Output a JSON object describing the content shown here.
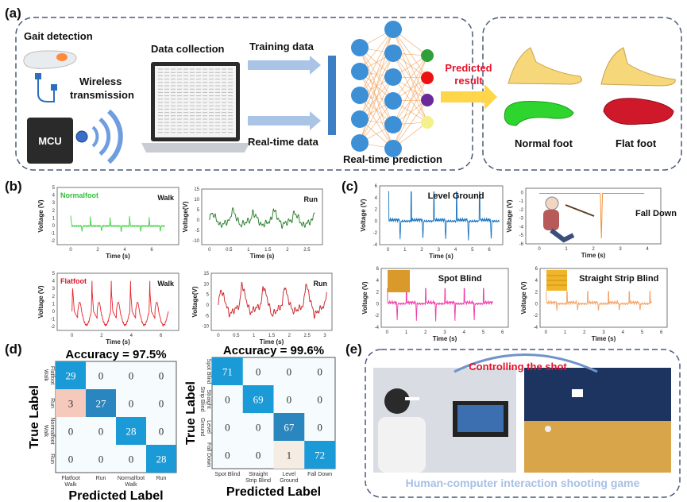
{
  "panel_labels": {
    "a": "(a)",
    "b": "(b)",
    "c": "(c)",
    "d": "(d)",
    "e": "(e)"
  },
  "panel_a": {
    "gait_detection": "Gait detection",
    "mcu": "MCU",
    "wireless_line1": "Wireless",
    "wireless_line2": "transmission",
    "data_collection": "Data collection",
    "training_data": "Training data",
    "realtime_data": "Real-time data",
    "realtime_prediction": "Real-time prediction",
    "predicted_line1": "Predicted",
    "predicted_line2": "result",
    "normal_foot": "Normal foot",
    "flat_foot": "Flat foot",
    "colors": {
      "accent_red": "#e8102a",
      "arrow": "#a9c4e4",
      "node": "#3d8fd6",
      "normal": "#2fd52f",
      "flat": "#d0182b"
    }
  },
  "panel_e": {
    "controlling": "Controlling the shot",
    "caption": "Human-computer interaction shooting game"
  },
  "chart_data": [
    {
      "id": "b1",
      "type": "line",
      "label": "Normalfoot",
      "label_color": "#2fbf3a",
      "title": "Walk",
      "xlabel": "Time (s)",
      "ylabel": "Voltage (V)",
      "xlim": [
        -1,
        8
      ],
      "ylim": [
        -2.5,
        5
      ],
      "xticks": [
        0,
        2,
        4,
        6
      ],
      "yticks": [
        -2,
        -1,
        0,
        1,
        2,
        3,
        4,
        5
      ],
      "color": "#3fd23f",
      "period": 1.45,
      "duration": 7,
      "peak": 1.3,
      "trough": -0.8,
      "shape": "walk-normal"
    },
    {
      "id": "b2",
      "type": "line",
      "title": "Run",
      "xlabel": "Time (s)",
      "ylabel": "Voltage(V)",
      "xlim": [
        -0.2,
        2.9
      ],
      "ylim": [
        -12,
        15
      ],
      "xticks": [
        0.0,
        0.5,
        1.0,
        1.5,
        2.0,
        2.5
      ],
      "yticks": [
        -10,
        -5,
        0,
        5,
        10,
        15
      ],
      "color": "#1f7a22",
      "period": 0.53,
      "duration": 2.7,
      "peak": 5.5,
      "trough": -5,
      "shape": "run"
    },
    {
      "id": "b3",
      "type": "line",
      "label": "Flatfoot",
      "label_color": "#d0182b",
      "title": "Walk",
      "xlabel": "Time (s)",
      "ylabel": "Voltage (V)",
      "xlim": [
        -1,
        7.2
      ],
      "ylim": [
        -2.5,
        5
      ],
      "xticks": [
        0,
        2,
        4,
        6
      ],
      "yticks": [
        -2,
        -1,
        0,
        1,
        2,
        3,
        4,
        5
      ],
      "color": "#e8232b",
      "period": 1.3,
      "duration": 6.5,
      "peak": 4,
      "trough": -1.8,
      "shape": "walk-flat"
    },
    {
      "id": "b4",
      "type": "line",
      "title": "Run",
      "xlabel": "Time (s)",
      "ylabel": "Voltage(V)",
      "xlim": [
        -0.2,
        3.2
      ],
      "ylim": [
        -12,
        15
      ],
      "xticks": [
        0.0,
        0.5,
        1.0,
        1.5,
        2.0,
        2.5,
        3.0
      ],
      "yticks": [
        -10,
        -5,
        0,
        5,
        10,
        15
      ],
      "color": "#c81e23",
      "period": 0.6,
      "duration": 3.05,
      "peak": 11,
      "trough": -8,
      "shape": "run"
    },
    {
      "id": "c1",
      "type": "line",
      "title": "Level Ground",
      "xlabel": "Time (s)",
      "ylabel": "Voltage (V)",
      "xlim": [
        -0.5,
        6.8
      ],
      "ylim": [
        -4,
        6
      ],
      "xticks": [
        0,
        1,
        2,
        3,
        4,
        5,
        6
      ],
      "yticks": [
        -4,
        -2,
        0,
        2,
        4,
        6
      ],
      "color": "#1a74c0",
      "period": 1.35,
      "duration": 6.6,
      "peak": 5,
      "trough": -3.3,
      "shape": "step"
    },
    {
      "id": "c2",
      "type": "line",
      "title": "Fall Down",
      "xlabel": "Time (s)",
      "ylabel": "Voltage (V)",
      "xlim": [
        -0.5,
        4.5
      ],
      "ylim": [
        -6,
        0.5
      ],
      "xticks": [
        0,
        1,
        2,
        3,
        4
      ],
      "yticks": [
        0,
        -1,
        -2,
        -3,
        -4,
        -5,
        -6
      ],
      "color": "#f08a2c",
      "duration": 3.9,
      "spike_at": 2.3,
      "trough": -5.5,
      "shape": "fall"
    },
    {
      "id": "c3",
      "type": "line",
      "title": "Spot Blind",
      "xlabel": "Time (s)",
      "ylabel": "Voltage (V)",
      "xlim": [
        -0.3,
        6.3
      ],
      "ylim": [
        -4,
        6
      ],
      "xticks": [
        0,
        1,
        2,
        3,
        4,
        5,
        6
      ],
      "yticks": [
        -4,
        -2,
        0,
        2,
        4,
        6
      ],
      "color": "#ee3aa8",
      "period": 1.0,
      "duration": 5.5,
      "peak": 2.6,
      "trough": -3,
      "shape": "step"
    },
    {
      "id": "c4",
      "type": "line",
      "title": "Straight Strip Blind",
      "xlabel": "Time (s)",
      "ylabel": "Voltage (V)",
      "xlim": [
        -0.3,
        6.3
      ],
      "ylim": [
        -4,
        6
      ],
      "xticks": [
        0,
        1,
        2,
        3,
        4,
        5,
        6
      ],
      "yticks": [
        -4,
        -2,
        0,
        2,
        4,
        6
      ],
      "color": "#f3a163",
      "period": 1.08,
      "duration": 5.5,
      "peak": 2.1,
      "trough": -1.2,
      "shape": "step"
    },
    {
      "id": "d1",
      "type": "heatmap",
      "title": "Accuracy = 97.5%",
      "xlabel": "Predicted Label",
      "ylabel": "True Label",
      "x_categories": [
        "Flatfoot Walk",
        "Run",
        "Normalfoot Walk",
        "Run"
      ],
      "y_categories": [
        "Flatfoot Walk",
        "Run",
        "Normalfoot Walk",
        "Run"
      ],
      "values": [
        [
          29,
          0,
          0,
          0
        ],
        [
          3,
          27,
          0,
          0
        ],
        [
          0,
          0,
          28,
          0
        ],
        [
          0,
          0,
          0,
          28
        ]
      ]
    },
    {
      "id": "d2",
      "type": "heatmap",
      "title": "Accuracy = 99.6%",
      "xlabel": "Predicted Label",
      "ylabel": "True Label",
      "x_categories": [
        "Spot Blind",
        "Straight Strip Blind",
        "Level Ground",
        "Fall Down"
      ],
      "y_categories": [
        "Spot Blind",
        "Straight Strip Blind",
        "Level Ground",
        "Fall Down"
      ],
      "values": [
        [
          71,
          0,
          0,
          0
        ],
        [
          0,
          69,
          0,
          0
        ],
        [
          0,
          0,
          67,
          0
        ],
        [
          0,
          0,
          1,
          72
        ]
      ]
    }
  ]
}
